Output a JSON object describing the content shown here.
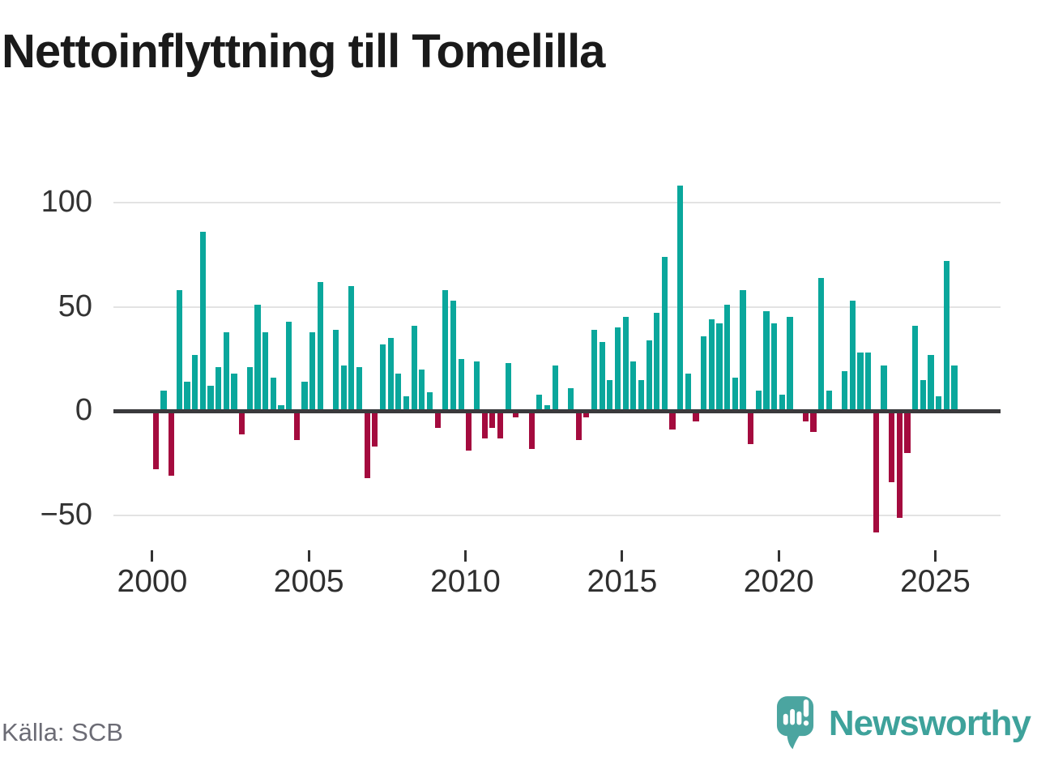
{
  "page": {
    "title": "Nettoinflyttning till Tomelilla",
    "source_text": "Källa: SCB",
    "brand": {
      "name": "Newsworthy"
    }
  },
  "colors": {
    "positive_bar": "#0aa79c",
    "negative_bar": "#a40b3e",
    "gridline": "#e3e3e3",
    "zero_axis": "#3a3a3c",
    "axis_label": "#333333",
    "title_text": "#1a1a1a",
    "source_text": "#6c6c75",
    "brand_teal": "#3ea29b",
    "logo_bubble": "#4ba5a0",
    "background": "#ffffff"
  },
  "chart_data": {
    "type": "bar",
    "title": "Nettoinflyttning till Tomelilla",
    "x_frequency": "quarterly",
    "x_start": "2000-Q1",
    "x_end": "2025-Q3",
    "x_tick_labels": [
      "2000",
      "2005",
      "2010",
      "2015",
      "2020",
      "2025"
    ],
    "y_tick_labels": [
      "100",
      "50",
      "0",
      "−50"
    ],
    "y_tick_values": [
      100,
      50,
      0,
      -50
    ],
    "ylim": [
      -62,
      112
    ],
    "grid": "horizontal-only",
    "legend": "none",
    "series": [
      {
        "name": "Nettoinflyttning",
        "values": [
          -28,
          10,
          -31,
          58,
          14,
          27,
          86,
          12,
          21,
          38,
          18,
          -11,
          21,
          51,
          38,
          16,
          3,
          43,
          -14,
          14,
          38,
          62,
          0,
          39,
          22,
          60,
          21,
          -32,
          -17,
          32,
          35,
          18,
          7,
          41,
          20,
          9,
          -8,
          58,
          53,
          25,
          -19,
          24,
          -13,
          -8,
          -13,
          23,
          -3,
          0,
          -18,
          8,
          3,
          22,
          1,
          11,
          -14,
          -3,
          39,
          33,
          15,
          40,
          45,
          24,
          15,
          34,
          47,
          74,
          -9,
          108,
          18,
          -5,
          36,
          44,
          42,
          51,
          16,
          58,
          -16,
          10,
          48,
          42,
          8,
          45,
          0,
          -5,
          -10,
          64,
          10,
          0,
          19,
          53,
          28,
          28,
          -58,
          22,
          -34,
          -51,
          -20,
          41,
          15,
          27,
          7,
          72,
          22
        ]
      }
    ]
  }
}
